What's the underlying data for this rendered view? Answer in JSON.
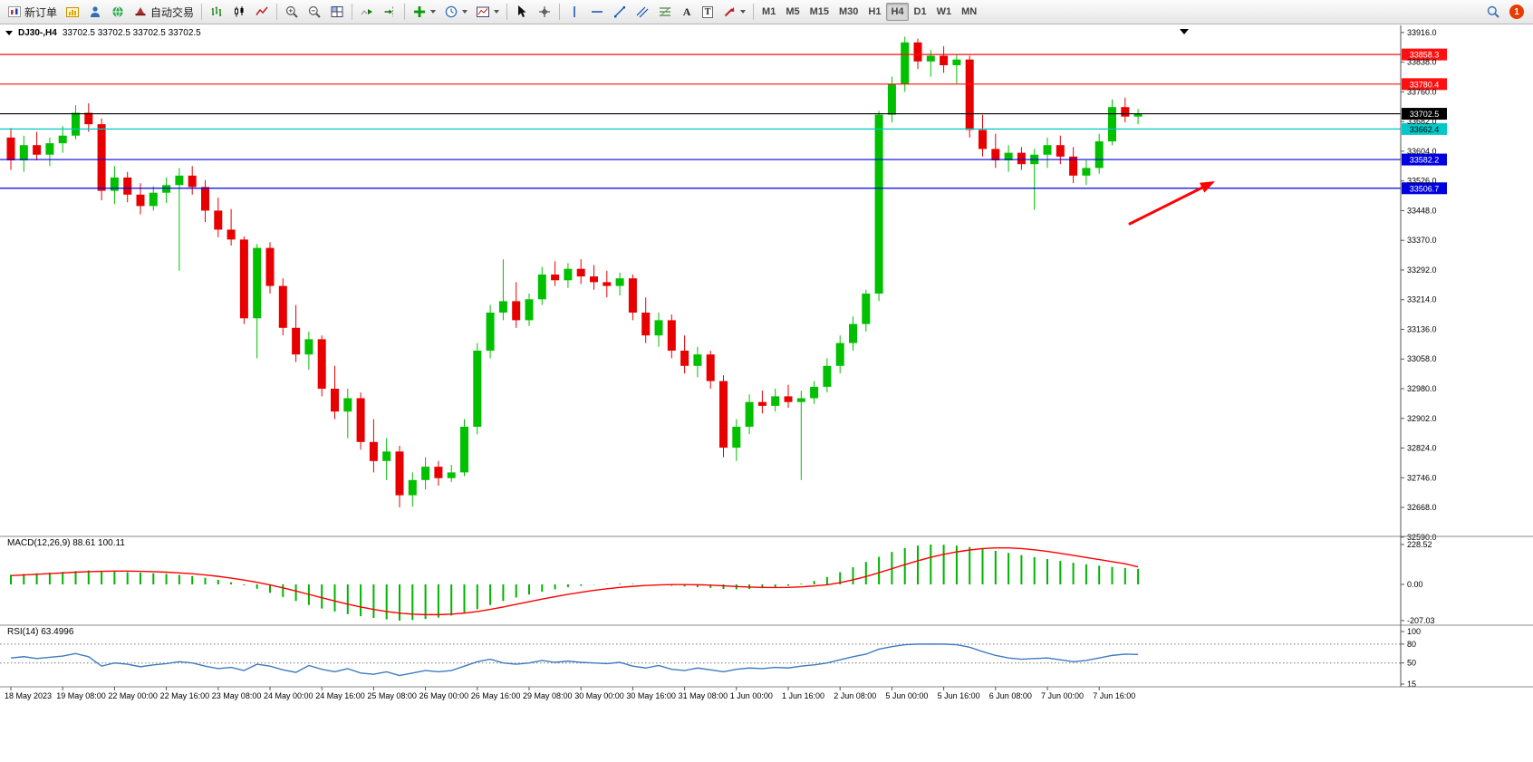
{
  "toolbar": {
    "new_order": {
      "label": "新订单",
      "icon": "order-ticket-icon"
    },
    "autotrading": {
      "label": "自动交易",
      "icon": "hat-icon"
    },
    "glyphs": {
      "text_tool": "A",
      "label_tool": "T"
    },
    "icons": [
      "chart-plus-icon",
      "profiles-icon",
      "globe-icon",
      "bar-chart-icon",
      "candlestick-icon",
      "line-chart-icon",
      "zoom-in-icon",
      "zoom-out-icon",
      "tile-windows-icon",
      "auto-scroll-icon",
      "chart-shift-icon",
      "indicators-plus-icon",
      "clock-icon",
      "template-icon",
      "cursor-icon",
      "crosshair-icon",
      "vertical-line-icon",
      "horizontal-line-icon",
      "trendline-icon",
      "channel-icon",
      "fibonacci-icon",
      "text-icon",
      "text-label-icon",
      "arrow-shape-icon",
      "magnifier-icon"
    ],
    "timeframes": {
      "items": [
        "M1",
        "M5",
        "M15",
        "M30",
        "H1",
        "H4",
        "D1",
        "W1",
        "MN"
      ],
      "active": "H4"
    },
    "notification_count": "1"
  },
  "chart_header": {
    "title": "DJ30-,H4",
    "ohlc": "33702.5 33702.5 33702.5 33702.5"
  },
  "chart_data": {
    "type": "candlestick",
    "symbol": "DJ30-",
    "timeframe": "H4",
    "colors": {
      "bull": "#00c000",
      "bear": "#e80000",
      "background": "#ffffff"
    },
    "price_axis": {
      "max": 33930,
      "min": 32589,
      "ticks": [
        "33916.0",
        "33838.0",
        "33760.0",
        "33682.0",
        "33604.0",
        "33526.0",
        "33448.0",
        "33370.0",
        "33292.0",
        "33214.0",
        "33136.0",
        "33058.0",
        "32980.0",
        "32902.0",
        "32824.0",
        "32746.0",
        "32668.0",
        "32590.0"
      ]
    },
    "x_labels": [
      "18 May 2023",
      "19 May 08:00",
      "22 May 00:00",
      "22 May 16:00",
      "23 May 08:00",
      "24 May 00:00",
      "24 May 16:00",
      "25 May 08:00",
      "26 May 00:00",
      "26 May 16:00",
      "29 May 08:00",
      "30 May 00:00",
      "30 May 16:00",
      "31 May 08:00",
      "1 Jun 00:00",
      "1 Jun 16:00",
      "2 Jun 08:00",
      "5 Jun 00:00",
      "5 Jun 16:00",
      "6 Jun 08:00",
      "7 Jun 00:00",
      "7 Jun 16:00"
    ],
    "hlines": [
      {
        "price": 33858.3,
        "label": "33858.3",
        "color": "#ff1010",
        "text": "#ffffff"
      },
      {
        "price": 33780.4,
        "label": "33780.4",
        "color": "#ff1010",
        "text": "#ffffff"
      },
      {
        "price": 33702.5,
        "label": "33702.5",
        "color": "#000000",
        "text": "#ffffff"
      },
      {
        "price": 33662.4,
        "label": "33662.4",
        "color": "#00c8c8",
        "text": "#000000"
      },
      {
        "price": 33582.2,
        "label": "33582.2",
        "color": "#0000e0",
        "text": "#ffffff"
      },
      {
        "price": 33506.7,
        "label": "33506.7",
        "color": "#0000e0",
        "text": "#ffffff"
      }
    ],
    "candles": [
      [
        33640,
        33665,
        33555,
        33580
      ],
      [
        33580,
        33645,
        33550,
        33620
      ],
      [
        33620,
        33655,
        33580,
        33595
      ],
      [
        33595,
        33640,
        33565,
        33625
      ],
      [
        33625,
        33670,
        33600,
        33645
      ],
      [
        33645,
        33725,
        33635,
        33705
      ],
      [
        33705,
        33730,
        33655,
        33675
      ],
      [
        33675,
        33690,
        33475,
        33500
      ],
      [
        33500,
        33565,
        33465,
        33535
      ],
      [
        33535,
        33550,
        33470,
        33490
      ],
      [
        33490,
        33520,
        33438,
        33460
      ],
      [
        33460,
        33512,
        33448,
        33495
      ],
      [
        33495,
        33535,
        33468,
        33515
      ],
      [
        33515,
        33560,
        33290,
        33540
      ],
      [
        33540,
        33565,
        33490,
        33510
      ],
      [
        33510,
        33528,
        33418,
        33448
      ],
      [
        33448,
        33482,
        33378,
        33398
      ],
      [
        33398,
        33452,
        33356,
        33372
      ],
      [
        33372,
        33380,
        33150,
        33165
      ],
      [
        33165,
        33360,
        33060,
        33350
      ],
      [
        33350,
        33365,
        33230,
        33250
      ],
      [
        33250,
        33270,
        33120,
        33140
      ],
      [
        33140,
        33200,
        33050,
        33070
      ],
      [
        33070,
        33130,
        33030,
        33110
      ],
      [
        33110,
        33120,
        32960,
        32980
      ],
      [
        32980,
        33040,
        32900,
        32920
      ],
      [
        32920,
        32980,
        32850,
        32955
      ],
      [
        32955,
        32970,
        32820,
        32840
      ],
      [
        32840,
        32900,
        32760,
        32790
      ],
      [
        32790,
        32850,
        32740,
        32815
      ],
      [
        32815,
        32830,
        32668,
        32700
      ],
      [
        32700,
        32760,
        32670,
        32740
      ],
      [
        32740,
        32800,
        32715,
        32775
      ],
      [
        32775,
        32790,
        32725,
        32745
      ],
      [
        32745,
        32780,
        32735,
        32760
      ],
      [
        32760,
        32900,
        32750,
        32880
      ],
      [
        32880,
        33100,
        32860,
        33080
      ],
      [
        33080,
        33200,
        33060,
        33180
      ],
      [
        33180,
        33320,
        33160,
        33210
      ],
      [
        33210,
        33260,
        33140,
        33160
      ],
      [
        33160,
        33230,
        33145,
        33215
      ],
      [
        33215,
        33300,
        33200,
        33280
      ],
      [
        33280,
        33315,
        33250,
        33265
      ],
      [
        33265,
        33310,
        33245,
        33295
      ],
      [
        33295,
        33320,
        33255,
        33275
      ],
      [
        33275,
        33305,
        33240,
        33260
      ],
      [
        33260,
        33290,
        33220,
        33250
      ],
      [
        33250,
        33285,
        33225,
        33270
      ],
      [
        33270,
        33280,
        33160,
        33180
      ],
      [
        33180,
        33220,
        33100,
        33120
      ],
      [
        33120,
        33180,
        33090,
        33160
      ],
      [
        33160,
        33175,
        33060,
        33080
      ],
      [
        33080,
        33120,
        33020,
        33040
      ],
      [
        33040,
        33090,
        33010,
        33070
      ],
      [
        33070,
        33080,
        32980,
        33000
      ],
      [
        33000,
        33015,
        32800,
        32825
      ],
      [
        32825,
        32900,
        32790,
        32880
      ],
      [
        32880,
        32965,
        32860,
        32945
      ],
      [
        32945,
        32975,
        32915,
        32935
      ],
      [
        32935,
        32980,
        32920,
        32960
      ],
      [
        32960,
        32990,
        32930,
        32945
      ],
      [
        32945,
        32975,
        32740,
        32955
      ],
      [
        32955,
        33000,
        32940,
        32985
      ],
      [
        32985,
        33060,
        32970,
        33040
      ],
      [
        33040,
        33120,
        33020,
        33100
      ],
      [
        33100,
        33170,
        33080,
        33150
      ],
      [
        33150,
        33240,
        33130,
        33230
      ],
      [
        33230,
        33710,
        33210,
        33700
      ],
      [
        33700,
        33800,
        33680,
        33780
      ],
      [
        33780,
        33905,
        33760,
        33890
      ],
      [
        33890,
        33900,
        33820,
        33840
      ],
      [
        33840,
        33870,
        33800,
        33855
      ],
      [
        33855,
        33880,
        33810,
        33830
      ],
      [
        33830,
        33860,
        33780,
        33845
      ],
      [
        33845,
        33855,
        33640,
        33660
      ],
      [
        33660,
        33700,
        33590,
        33610
      ],
      [
        33610,
        33650,
        33560,
        33580
      ],
      [
        33580,
        33620,
        33550,
        33600
      ],
      [
        33600,
        33615,
        33555,
        33570
      ],
      [
        33570,
        33610,
        33450,
        33595
      ],
      [
        33595,
        33640,
        33560,
        33620
      ],
      [
        33620,
        33645,
        33570,
        33590
      ],
      [
        33590,
        33615,
        33520,
        33540
      ],
      [
        33540,
        33580,
        33515,
        33560
      ],
      [
        33560,
        33650,
        33545,
        33630
      ],
      [
        33630,
        33740,
        33620,
        33720
      ],
      [
        33720,
        33745,
        33680,
        33695
      ],
      [
        33695,
        33715,
        33675,
        33702.5
      ]
    ],
    "macd": {
      "label": "MACD(12,26,9) 88.61 100.11",
      "axis": [
        "228.52",
        "0.00",
        "-207.03"
      ],
      "range": [
        -207.03,
        228.52
      ],
      "hist_color": "#00b400",
      "signal_color": "#ff0000",
      "histogram": [
        55,
        60,
        64,
        68,
        72,
        76,
        80,
        78,
        74,
        70,
        67,
        64,
        60,
        55,
        48,
        38,
        26,
        12,
        -5,
        -25,
        -48,
        -72,
        -95,
        -118,
        -138,
        -155,
        -170,
        -182,
        -192,
        -200,
        -207,
        -204,
        -198,
        -190,
        -178,
        -162,
        -142,
        -118,
        -95,
        -75,
        -58,
        -42,
        -28,
        -16,
        -8,
        -2,
        2,
        4,
        3,
        0,
        -4,
        -8,
        -12,
        -16,
        -20,
        -26,
        -28,
        -26,
        -22,
        -16,
        -8,
        4,
        20,
        42,
        70,
        98,
        128,
        158,
        186,
        208,
        222,
        228,
        227,
        222,
        214,
        204,
        192,
        180,
        168,
        156,
        145,
        134,
        124,
        115,
        107,
        100,
        94,
        88.6
      ],
      "signal": [
        50,
        54,
        58,
        62,
        66,
        70,
        73,
        75,
        76,
        76,
        75,
        73,
        70,
        66,
        61,
        54,
        46,
        36,
        25,
        12,
        -3,
        -20,
        -38,
        -57,
        -76,
        -95,
        -113,
        -129,
        -143,
        -155,
        -164,
        -170,
        -173,
        -173,
        -170,
        -164,
        -155,
        -143,
        -129,
        -114,
        -99,
        -84,
        -70,
        -57,
        -45,
        -34,
        -25,
        -17,
        -11,
        -6,
        -3,
        -1,
        -1,
        -2,
        -4,
        -8,
        -12,
        -15,
        -17,
        -18,
        -17,
        -14,
        -9,
        -2,
        10,
        26,
        45,
        67,
        90,
        113,
        135,
        155,
        172,
        186,
        197,
        205,
        209,
        209,
        205,
        198,
        189,
        178,
        166,
        154,
        142,
        130,
        118,
        100.1
      ]
    },
    "rsi": {
      "label": "RSI(14) 63.4996",
      "axis": [
        "100",
        "80",
        "50",
        "15"
      ],
      "range": [
        15,
        100
      ],
      "levels": [
        80,
        50
      ],
      "color": "#3e7bc0",
      "values": [
        58,
        60,
        57,
        59,
        61,
        65,
        60,
        45,
        50,
        48,
        44,
        47,
        49,
        52,
        50,
        45,
        41,
        43,
        38,
        48,
        45,
        39,
        35,
        46,
        40,
        36,
        41,
        34,
        32,
        36,
        30,
        34,
        38,
        36,
        38,
        45,
        52,
        56,
        50,
        48,
        50,
        54,
        51,
        53,
        51,
        50,
        49,
        51,
        45,
        42,
        46,
        40,
        38,
        42,
        39,
        36,
        40,
        42,
        41,
        43,
        42,
        45,
        47,
        50,
        55,
        60,
        64,
        72,
        76,
        79,
        80,
        80,
        80,
        79,
        75,
        68,
        62,
        58,
        56,
        57,
        58,
        55,
        52,
        54,
        58,
        62,
        64,
        63.5
      ]
    },
    "annotation_arrow": {
      "color": "#ff0000"
    }
  }
}
